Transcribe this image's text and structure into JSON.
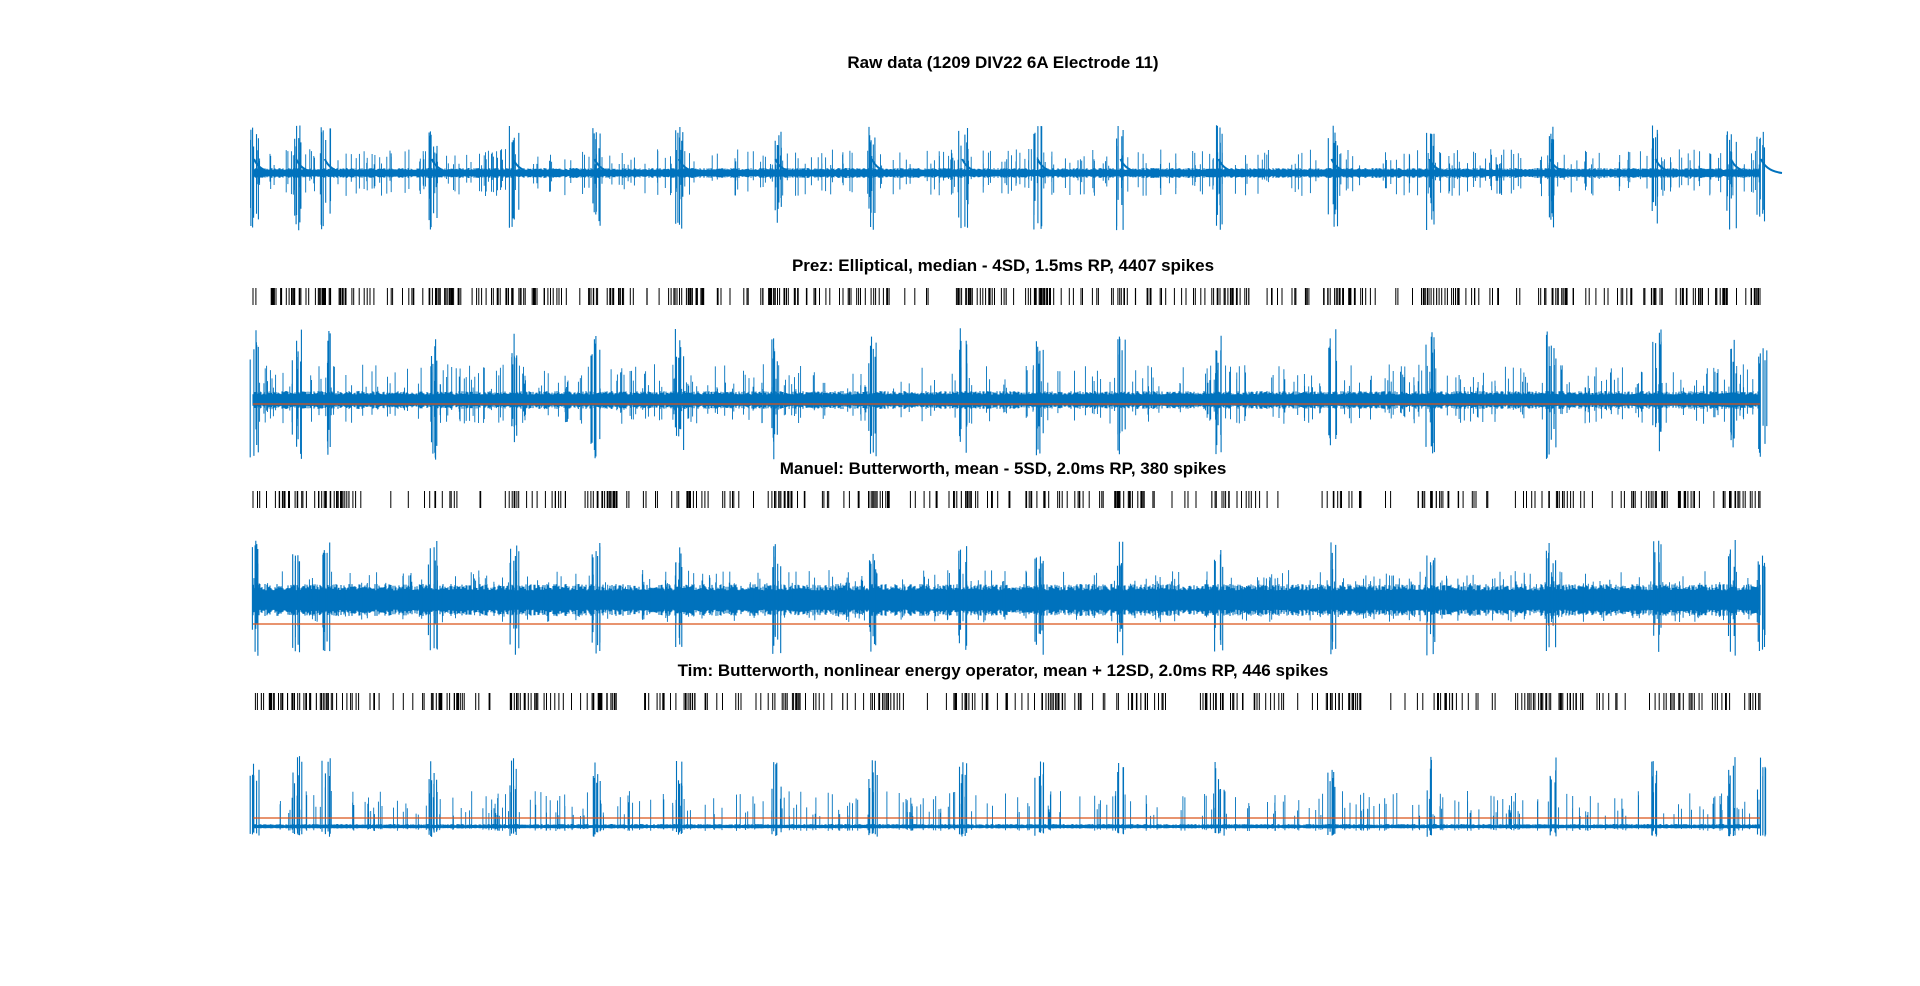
{
  "figure": {
    "background": "#ffffff"
  },
  "colors": {
    "trace": "#0072BD",
    "threshold": "#D95319",
    "raster": "#000000"
  },
  "chart_data": [
    {
      "type": "line",
      "title": "Raw data (1209 DIV22 6A Electrode 11)",
      "series": [
        {
          "name": "",
          "signal": "raw"
        }
      ],
      "axes_visible": false,
      "notable_events": [
        0.0,
        0.028,
        0.047,
        0.118,
        0.172,
        0.226,
        0.282,
        0.346,
        0.41,
        0.47,
        0.52,
        0.575,
        0.64,
        0.715,
        0.78,
        0.86,
        0.93,
        0.98,
        1.0
      ]
    },
    {
      "type": "raster",
      "title": "Prez: Elliptical, median - 4SD, 1.5ms RP, 4407 spikes",
      "spike_count": 4407
    },
    {
      "type": "line",
      "title": "",
      "series": [
        {
          "name": "",
          "signal": "elliptical-filtered"
        }
      ],
      "threshold_line": true
    },
    {
      "type": "raster",
      "title": "Manuel: Butterworth, mean - 5SD, 2.0ms RP, 380 spikes",
      "spike_count": 380
    },
    {
      "type": "line",
      "title": "",
      "series": [
        {
          "name": "",
          "signal": "butterworth-filtered"
        }
      ],
      "threshold_line": true
    },
    {
      "type": "raster",
      "title": "Tim: Butterworth, nonlinear energy operator, mean + 12SD, 2.0ms RP, 446 spikes",
      "spike_count": 446
    },
    {
      "type": "line",
      "title": "",
      "series": [
        {
          "name": "",
          "signal": "nonlinear-energy"
        }
      ],
      "threshold_line": true
    }
  ]
}
